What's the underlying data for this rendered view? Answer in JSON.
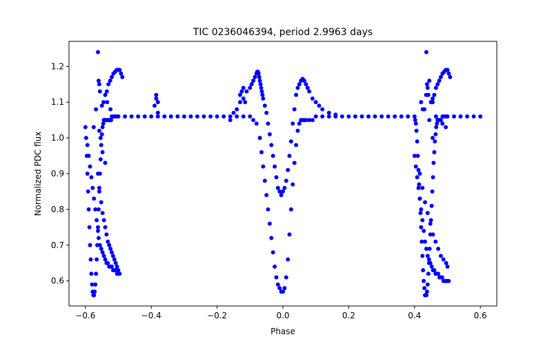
{
  "chart_data": {
    "type": "scatter",
    "title": "TIC 0236046394, period 2.9963 days",
    "xlabel": "Phase",
    "ylabel": "Normalized PDC flux",
    "xlim": [
      -0.65,
      0.65
    ],
    "ylim": [
      0.53,
      1.27
    ],
    "xticks": [
      -0.6,
      -0.4,
      -0.2,
      0.0,
      0.2,
      0.4,
      0.6
    ],
    "xtick_labels": [
      "−0.6",
      "−0.4",
      "−0.2",
      "0.0",
      "0.2",
      "0.4",
      "0.6"
    ],
    "yticks": [
      0.6,
      0.7,
      0.8,
      0.9,
      1.0,
      1.1,
      1.2
    ],
    "ytick_labels": [
      "0.6",
      "0.7",
      "0.8",
      "0.9",
      "1.0",
      "1.1",
      "1.2"
    ],
    "grid": false,
    "color": "#0000ff",
    "series": [
      {
        "x": [
          -0.6,
          -0.598,
          -0.596,
          -0.594,
          -0.592,
          -0.59,
          -0.588,
          -0.586,
          -0.584,
          -0.582,
          -0.58,
          -0.578,
          -0.576,
          -0.574,
          -0.572,
          -0.57,
          -0.568,
          -0.566,
          -0.564,
          -0.562,
          -0.56,
          -0.558,
          -0.556,
          -0.554,
          -0.552,
          -0.55,
          -0.548,
          -0.546,
          -0.544,
          -0.542,
          -0.54,
          -0.538,
          -0.536,
          -0.534,
          -0.532,
          -0.53,
          -0.528,
          -0.526,
          -0.524,
          -0.522,
          -0.52,
          -0.515,
          -0.51,
          -0.505,
          -0.5,
          -0.48,
          -0.46,
          -0.44,
          -0.42,
          -0.4,
          -0.38,
          -0.36,
          -0.34,
          -0.32,
          -0.3,
          -0.28,
          -0.26,
          -0.24,
          -0.22,
          -0.2,
          -0.18,
          -0.16,
          -0.14,
          -0.12,
          -0.1,
          -0.09,
          -0.08,
          -0.07,
          -0.065,
          -0.06,
          -0.055,
          -0.05,
          -0.045,
          -0.04,
          -0.035,
          -0.03,
          -0.025,
          -0.02,
          -0.015,
          -0.01,
          -0.005,
          0.0,
          0.005,
          0.01,
          0.015,
          0.02,
          0.025,
          0.03,
          0.035,
          0.04,
          0.045,
          0.05,
          0.055,
          0.06,
          0.065,
          0.07,
          0.08,
          0.09,
          0.1,
          0.12,
          0.14,
          0.16,
          0.18,
          0.2,
          0.22,
          0.24,
          0.26,
          0.28,
          0.3,
          0.32,
          0.34,
          0.36,
          0.38,
          0.4,
          0.402,
          0.404,
          0.406,
          0.408,
          0.41,
          0.412,
          0.414,
          0.416,
          0.418,
          0.42,
          0.422,
          0.424,
          0.426,
          0.428,
          0.43,
          0.432,
          0.434,
          0.436,
          0.438,
          0.44,
          0.442,
          0.444,
          0.446,
          0.448,
          0.45,
          0.452,
          0.454,
          0.456,
          0.458,
          0.46,
          0.462,
          0.464,
          0.466,
          0.468,
          0.47,
          0.472,
          0.474,
          0.476,
          0.478,
          0.48,
          0.485,
          0.49,
          0.495,
          0.5,
          0.52,
          0.54,
          0.56,
          0.58,
          0.6
        ],
        "y": [
          1.03,
          1.0,
          0.95,
          0.9,
          0.85,
          0.8,
          0.75,
          0.7,
          0.66,
          0.62,
          0.59,
          0.57,
          0.56,
          0.56,
          0.57,
          0.59,
          0.62,
          0.66,
          0.7,
          0.75,
          0.8,
          0.85,
          0.9,
          0.94,
          0.98,
          1.01,
          1.03,
          1.04,
          1.05,
          1.05,
          1.05,
          1.05,
          1.05,
          1.05,
          1.05,
          1.05,
          1.05,
          1.05,
          1.05,
          1.05,
          1.06,
          1.06,
          1.06,
          1.06,
          1.06,
          1.06,
          1.06,
          1.06,
          1.06,
          1.06,
          1.06,
          1.06,
          1.06,
          1.06,
          1.06,
          1.06,
          1.06,
          1.06,
          1.06,
          1.06,
          1.06,
          1.06,
          1.06,
          1.06,
          1.06,
          1.05,
          1.04,
          1.0,
          0.96,
          0.92,
          0.88,
          0.84,
          0.8,
          0.76,
          0.72,
          0.68,
          0.64,
          0.61,
          0.59,
          0.58,
          0.57,
          0.57,
          0.58,
          0.61,
          0.66,
          0.73,
          0.8,
          0.87,
          0.93,
          0.98,
          1.02,
          1.04,
          1.05,
          1.05,
          1.05,
          1.05,
          1.05,
          1.05,
          1.06,
          1.06,
          1.06,
          1.06,
          1.06,
          1.06,
          1.06,
          1.06,
          1.06,
          1.06,
          1.06,
          1.06,
          1.06,
          1.06,
          1.06,
          1.06,
          1.05,
          1.04,
          1.02,
          0.99,
          0.95,
          0.91,
          0.87,
          0.83,
          0.79,
          0.75,
          0.71,
          0.67,
          0.63,
          0.6,
          0.58,
          0.56,
          0.56,
          0.56,
          0.57,
          0.59,
          0.62,
          0.65,
          0.69,
          0.73,
          0.77,
          0.81,
          0.85,
          0.89,
          0.93,
          0.96,
          0.99,
          1.01,
          1.03,
          1.04,
          1.05,
          1.05,
          1.05,
          1.05,
          1.05,
          1.05,
          1.06,
          1.06,
          1.06,
          1.06,
          1.06,
          1.06,
          1.06,
          1.06,
          1.06
        ]
      },
      {
        "x": [
          -0.15,
          -0.14,
          -0.13,
          -0.12,
          -0.11,
          -0.1,
          -0.095,
          -0.09,
          -0.085,
          -0.08,
          -0.078,
          -0.076,
          -0.074,
          -0.072,
          -0.07,
          -0.068,
          -0.066,
          -0.064,
          -0.062,
          -0.06,
          -0.055,
          -0.05,
          -0.045,
          -0.04,
          -0.035,
          -0.03,
          -0.025,
          -0.02,
          -0.015,
          -0.01,
          -0.005,
          0.0,
          0.005,
          0.01,
          0.015,
          0.02,
          0.025,
          0.03,
          0.035,
          0.04,
          0.045,
          0.05,
          0.055,
          0.06,
          0.065,
          0.07,
          0.075,
          0.08,
          0.09,
          0.1,
          0.11,
          0.12,
          0.14,
          0.16
        ],
        "y": [
          1.07,
          1.08,
          1.1,
          1.11,
          1.13,
          1.14,
          1.15,
          1.16,
          1.17,
          1.18,
          1.185,
          1.185,
          1.18,
          1.17,
          1.16,
          1.15,
          1.14,
          1.13,
          1.12,
          1.11,
          1.09,
          1.07,
          1.04,
          1.01,
          0.98,
          0.95,
          0.92,
          0.89,
          0.86,
          0.85,
          0.84,
          0.85,
          0.86,
          0.88,
          0.91,
          0.95,
          0.99,
          1.04,
          1.08,
          1.12,
          1.14,
          1.15,
          1.16,
          1.165,
          1.16,
          1.15,
          1.14,
          1.13,
          1.11,
          1.1,
          1.09,
          1.08,
          1.07,
          1.065
        ]
      },
      {
        "x": [
          -0.594,
          -0.59,
          -0.586,
          -0.582,
          -0.578,
          -0.574,
          -0.57,
          -0.566,
          -0.562,
          -0.56,
          -0.556,
          -0.552,
          -0.548,
          -0.544,
          -0.54,
          -0.536,
          -0.532,
          -0.528,
          -0.524,
          -0.52,
          -0.516,
          -0.512,
          -0.508,
          -0.504,
          -0.5,
          -0.496,
          -0.562,
          -0.558,
          -0.552,
          -0.548,
          -0.544,
          -0.54,
          -0.536,
          -0.532,
          -0.528,
          -0.524,
          -0.52,
          -0.516,
          -0.512,
          -0.508,
          -0.504,
          -0.5,
          -0.575,
          -0.568,
          -0.558,
          -0.548,
          -0.54,
          -0.38,
          -0.385,
          -0.12,
          -0.125,
          -0.13,
          -0.115,
          -0.16,
          0.4,
          0.404,
          0.408,
          0.412,
          0.416,
          0.42,
          0.424,
          0.428,
          0.432,
          0.436,
          0.44,
          0.444,
          0.448,
          0.452,
          0.456,
          0.46,
          0.464,
          0.468,
          0.472,
          0.476,
          0.48,
          0.484,
          0.488,
          0.492,
          0.496,
          0.5,
          0.504,
          0.416,
          0.424,
          0.432,
          0.44,
          0.448,
          0.456,
          0.464,
          0.472,
          0.48,
          0.488,
          0.496,
          0.5,
          0.425,
          0.435,
          0.445,
          0.455,
          0.465,
          0.475,
          0.485,
          0.495
        ],
        "y": [
          0.98,
          0.95,
          0.92,
          0.89,
          0.86,
          0.83,
          0.8,
          0.77,
          0.74,
          0.72,
          0.7,
          0.69,
          0.68,
          0.67,
          0.66,
          0.65,
          0.65,
          0.64,
          0.64,
          0.64,
          0.63,
          0.63,
          0.63,
          0.62,
          0.62,
          0.62,
          0.9,
          0.86,
          0.82,
          0.79,
          0.77,
          0.75,
          0.73,
          0.71,
          0.7,
          0.69,
          0.68,
          0.67,
          0.66,
          0.65,
          0.64,
          0.63,
          1.03,
          1.08,
          1.02,
          0.96,
          0.93,
          1.1,
          1.12,
          1.14,
          1.13,
          1.12,
          1.1,
          1.05,
          0.95,
          0.92,
          0.89,
          0.86,
          0.83,
          0.8,
          0.77,
          0.74,
          0.71,
          0.69,
          0.67,
          0.66,
          0.65,
          0.64,
          0.63,
          0.63,
          0.62,
          0.62,
          0.62,
          0.61,
          0.61,
          0.61,
          0.6,
          0.6,
          0.6,
          0.6,
          0.6,
          0.9,
          0.86,
          0.82,
          0.79,
          0.76,
          0.73,
          0.71,
          0.69,
          0.67,
          0.66,
          0.65,
          0.64,
          1.08,
          1.12,
          1.16,
          1.1,
          1.06,
          1.05,
          1.04,
          1.03
        ]
      },
      {
        "x": [
          -0.562,
          -0.56,
          -0.558,
          -0.556,
          -0.55,
          -0.545,
          -0.54,
          -0.535,
          -0.53,
          -0.525,
          -0.52,
          -0.515,
          -0.51,
          -0.505,
          -0.5,
          -0.496,
          -0.492,
          -0.488,
          -0.534,
          -0.524,
          -0.544,
          -0.554,
          -0.385,
          -0.39,
          -0.38,
          0.436,
          0.438,
          0.44,
          0.442,
          0.45,
          0.455,
          0.46,
          0.465,
          0.47,
          0.475,
          0.48,
          0.485,
          0.49,
          0.495,
          0.5,
          0.504,
          0.508,
          0.42,
          0.43,
          0.445,
          0.455
        ],
        "y": [
          1.24,
          1.16,
          1.15,
          1.13,
          1.09,
          1.1,
          1.12,
          1.13,
          1.15,
          1.16,
          1.17,
          1.18,
          1.185,
          1.19,
          1.19,
          1.19,
          1.18,
          1.17,
          1.1,
          1.08,
          1.05,
          1.0,
          1.11,
          1.09,
          1.07,
          1.24,
          1.15,
          1.14,
          1.12,
          1.1,
          1.11,
          1.12,
          1.14,
          1.15,
          1.16,
          1.17,
          1.18,
          1.185,
          1.19,
          1.19,
          1.18,
          1.17,
          1.1,
          1.08,
          1.05,
          1.0
        ]
      }
    ]
  }
}
